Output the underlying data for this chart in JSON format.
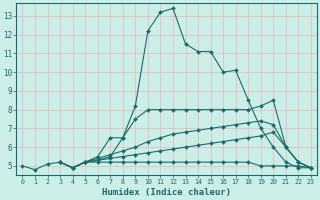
{
  "bg_color": "#cceee8",
  "grid_color": "#e8b4b4",
  "line_color": "#1a6b6b",
  "xlabel": "Humidex (Indice chaleur)",
  "xlim": [
    -0.5,
    23.5
  ],
  "ylim": [
    4.5,
    13.7
  ],
  "xticks": [
    0,
    1,
    2,
    3,
    4,
    5,
    6,
    7,
    8,
    9,
    10,
    11,
    12,
    13,
    14,
    15,
    16,
    17,
    18,
    19,
    20,
    21,
    22,
    23
  ],
  "yticks": [
    5,
    6,
    7,
    8,
    9,
    10,
    11,
    12,
    13
  ],
  "series": [
    {
      "x": [
        0,
        1,
        2,
        3,
        4,
        5,
        6,
        7,
        8,
        9,
        10,
        11,
        12,
        13,
        14,
        15,
        16,
        17,
        18,
        19,
        20,
        21,
        22,
        23
      ],
      "y": [
        5.0,
        4.8,
        5.1,
        5.2,
        4.9,
        5.2,
        5.2,
        5.2,
        5.2,
        5.2,
        5.2,
        5.2,
        5.2,
        5.2,
        5.2,
        5.2,
        5.2,
        5.2,
        5.2,
        5.0,
        5.0,
        5.0,
        5.0,
        4.9
      ]
    },
    {
      "x": [
        3,
        4,
        5,
        6,
        7,
        8,
        9,
        10,
        11,
        12,
        13,
        14,
        15,
        16,
        17,
        18,
        19,
        20,
        21,
        22,
        23
      ],
      "y": [
        5.2,
        4.9,
        5.2,
        5.3,
        5.5,
        6.5,
        8.2,
        12.2,
        13.2,
        13.4,
        11.5,
        11.1,
        11.1,
        10.0,
        10.1,
        8.5,
        7.0,
        6.0,
        5.2,
        4.9,
        4.9
      ]
    },
    {
      "x": [
        3,
        4,
        5,
        6,
        7,
        8,
        9,
        10,
        11,
        12,
        13,
        14,
        15,
        16,
        17,
        18,
        19,
        20,
        21,
        22,
        23
      ],
      "y": [
        5.2,
        4.9,
        5.2,
        5.5,
        6.5,
        6.5,
        7.5,
        8.0,
        8.0,
        8.0,
        8.0,
        8.0,
        8.0,
        8.0,
        8.0,
        8.0,
        8.2,
        8.5,
        6.0,
        5.2,
        4.9
      ]
    },
    {
      "x": [
        3,
        4,
        5,
        6,
        7,
        8,
        9,
        10,
        11,
        12,
        13,
        14,
        15,
        16,
        17,
        18,
        19,
        20,
        21,
        22,
        23
      ],
      "y": [
        5.2,
        4.9,
        5.2,
        5.4,
        5.6,
        5.8,
        6.0,
        6.3,
        6.5,
        6.7,
        6.8,
        6.9,
        7.0,
        7.1,
        7.2,
        7.3,
        7.4,
        7.2,
        6.0,
        5.2,
        4.9
      ]
    },
    {
      "x": [
        3,
        4,
        5,
        6,
        7,
        8,
        9,
        10,
        11,
        12,
        13,
        14,
        15,
        16,
        17,
        18,
        19,
        20,
        21,
        22,
        23
      ],
      "y": [
        5.2,
        4.9,
        5.2,
        5.3,
        5.4,
        5.5,
        5.6,
        5.7,
        5.8,
        5.9,
        6.0,
        6.1,
        6.2,
        6.3,
        6.4,
        6.5,
        6.6,
        6.8,
        6.0,
        5.2,
        4.9
      ]
    }
  ]
}
